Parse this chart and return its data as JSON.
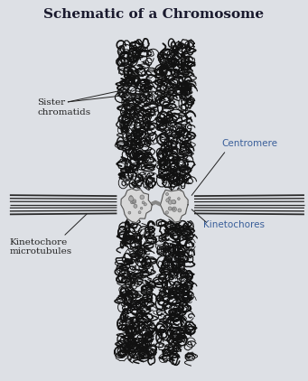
{
  "title": "Schematic of a Chromosome",
  "title_fontsize": 11,
  "title_color": "#1a1a2e",
  "bg_color": "#dde0e5",
  "labels": {
    "sister_chromatids": "Sister\nchromatids",
    "centromere": "Centromere",
    "kinetochore_microtubules": "Kinetochore\nmicrotubules",
    "kinetochores": "Kinetochores"
  },
  "label_color_blue": "#3a5f9a",
  "label_color_black": "#222222",
  "chromatid_color": "#111111",
  "microtubule_color": "#2a2a2a",
  "fig_width": 3.41,
  "fig_height": 4.22
}
